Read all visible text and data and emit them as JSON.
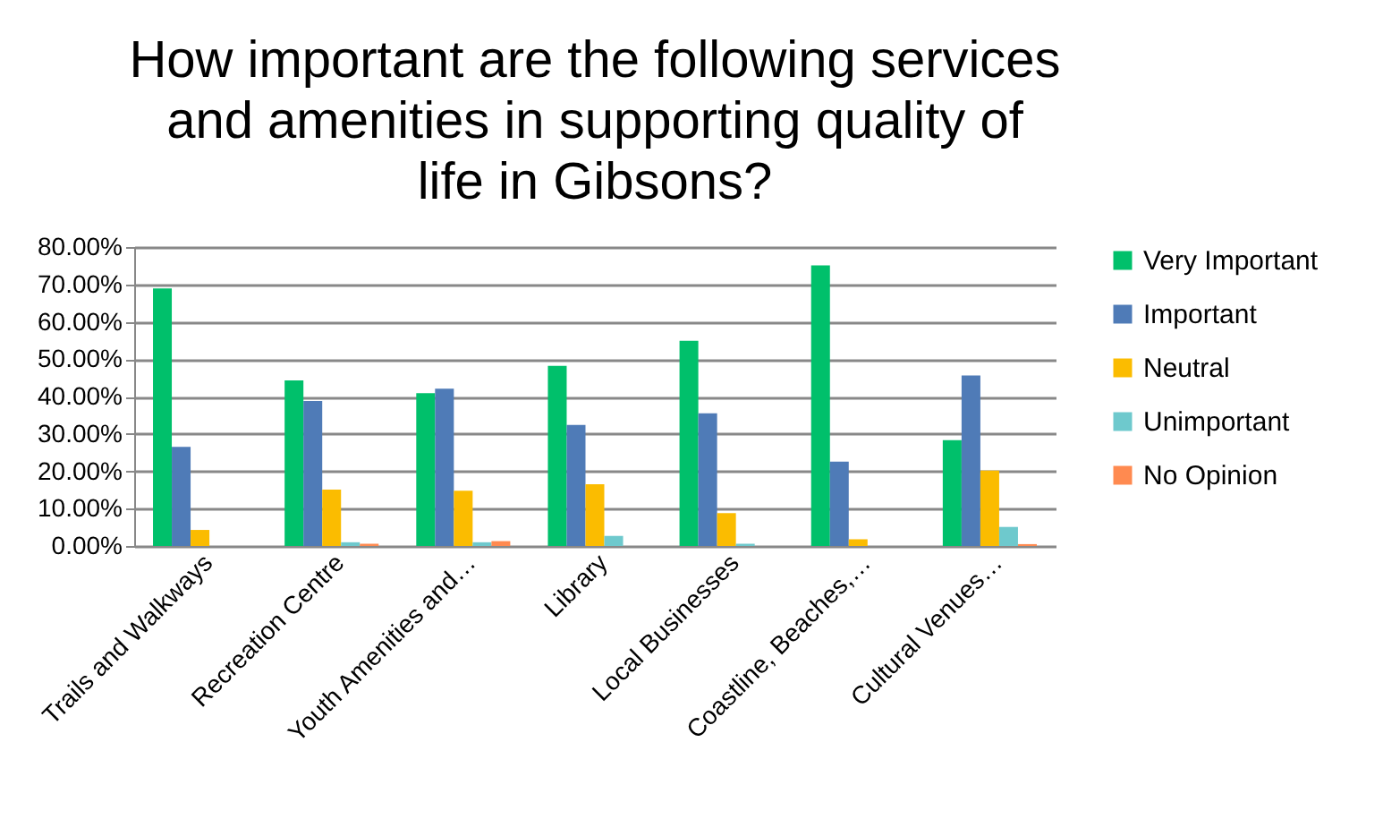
{
  "chart_data": {
    "type": "bar",
    "title": "How important are the following services and amenities in supporting quality of life in Gibsons?",
    "categories": [
      "Trails and Walkways",
      "Recreation Centre",
      "Youth Amenities and…",
      "Library",
      "Local Businesses",
      "Coastline, Beaches,…",
      "Cultural Venues…"
    ],
    "series": [
      {
        "name": "Very Important",
        "color": "#00c06b",
        "values": [
          68.9,
          44.3,
          40.9,
          48.2,
          54.9,
          75.1,
          28.3
        ]
      },
      {
        "name": "Important",
        "color": "#4f7bb7",
        "values": [
          26.5,
          38.8,
          42.1,
          32.4,
          35.5,
          22.6,
          45.6
        ]
      },
      {
        "name": "Neutral",
        "color": "#fbbc00",
        "values": [
          4.3,
          15.1,
          14.8,
          16.5,
          8.8,
          1.8,
          20.2
        ]
      },
      {
        "name": "Unimportant",
        "color": "#6ec9cd",
        "values": [
          0,
          1.0,
          1.0,
          2.7,
          0.6,
          0,
          5.1
        ]
      },
      {
        "name": "No Opinion",
        "color": "#ff8a50",
        "values": [
          0,
          0.6,
          1.3,
          0,
          0,
          0,
          0.5
        ]
      }
    ],
    "ylim": [
      0,
      80
    ],
    "yticks": [
      {
        "value": 0,
        "label": "0.00%"
      },
      {
        "value": 10,
        "label": "10.00%"
      },
      {
        "value": 20,
        "label": "20.00%"
      },
      {
        "value": 30,
        "label": "30.00%"
      },
      {
        "value": 40,
        "label": "40.00%"
      },
      {
        "value": 50,
        "label": "50.00%"
      },
      {
        "value": 60,
        "label": "60.00%"
      },
      {
        "value": 70,
        "label": "70.00%"
      },
      {
        "value": 80,
        "label": "80.00%"
      }
    ],
    "grid": "y",
    "legend": "right"
  }
}
